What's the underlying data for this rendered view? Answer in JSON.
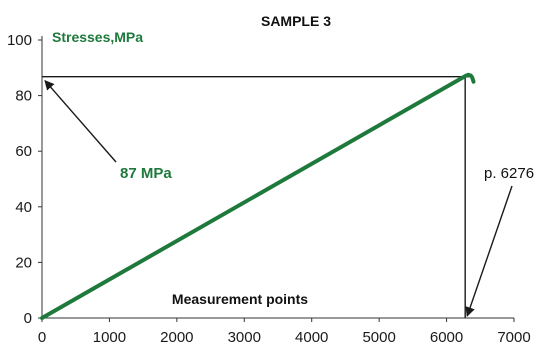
{
  "chart_data": {
    "type": "line",
    "title": "SAMPLE  3",
    "ylabel": "Stresses,MPa",
    "xlabel": "Measurement points",
    "xlim": [
      0,
      7000
    ],
    "ylim": [
      0,
      100
    ],
    "x_ticks": [
      0,
      1000,
      2000,
      3000,
      4000,
      5000,
      6000,
      7000
    ],
    "y_ticks": [
      0,
      20,
      40,
      60,
      80,
      100
    ],
    "grid": false,
    "series": [
      {
        "x": [
          0,
          6276,
          6320,
          6360,
          6380,
          6400
        ],
        "y": [
          0,
          87,
          87.5,
          87.2,
          86.5,
          85
        ],
        "color": "#1e7a3c"
      }
    ],
    "annotations": {
      "peak_stress": "87 MPa",
      "peak_point": "p. 6276"
    },
    "reference_lines": {
      "horizontal_y": 86.8,
      "vertical_x": 6276
    }
  }
}
